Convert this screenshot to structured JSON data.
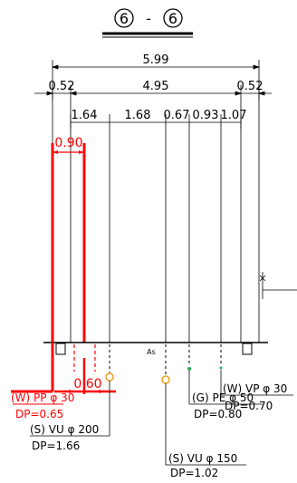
{
  "section_title": {
    "left": "6",
    "dash": "-",
    "right": "6"
  },
  "dimensions": {
    "overall": "5.99",
    "left_offset": "0.52",
    "inner_span": "4.95",
    "right_offset": "0.52",
    "d1": "1.64",
    "d2": "1.68",
    "d3": "0.67",
    "d4": "0.93",
    "d5": "1.07"
  },
  "red_dims": {
    "top": "0.90",
    "bottom": "0.60"
  },
  "ground_label": "As",
  "pipes": [
    {
      "label": "(W) PP φ 30",
      "depth": "DP=0.65",
      "color": "#ff0000"
    },
    {
      "label": "(S) VU φ 200",
      "depth": "DP=1.66",
      "color": "#000000"
    },
    {
      "label": "(S) VU φ 150",
      "depth": "DP=1.02",
      "color": "#000000"
    },
    {
      "label": "(G) PE φ 50",
      "depth": "DP=0.80",
      "color": "#000000"
    },
    {
      "label": "(W) VP φ 30",
      "depth": "DP=0.70",
      "color": "#000000"
    }
  ],
  "colors": {
    "ink": "#000000",
    "red": "#ff0000",
    "orange": "#f0a020",
    "green": "#22b14c"
  }
}
